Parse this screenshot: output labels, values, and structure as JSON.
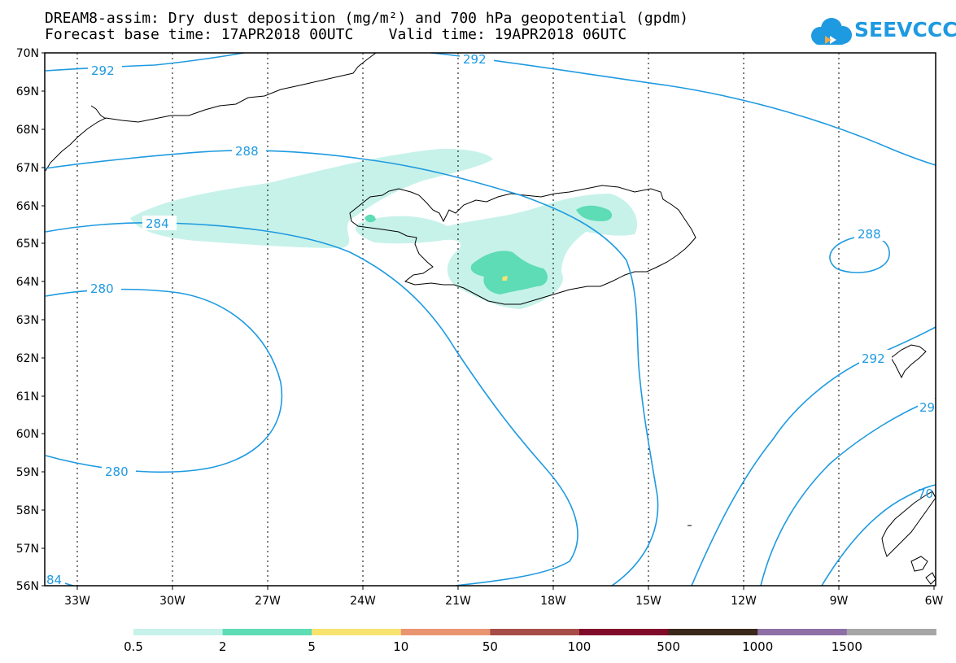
{
  "title": {
    "line1": "DREAM8-assim: Dry dust deposition (mg/m²) and 700 hPa geopotential (gpdm)",
    "line2": "Forecast base time: 17APR2018 00UTC    Valid time: 19APR2018 06UTC"
  },
  "logo": {
    "text": "SEEVCCC",
    "icon": "cloud-icon"
  },
  "map": {
    "lat_labels": [
      "70N",
      "69N",
      "68N",
      "67N",
      "66N",
      "65N",
      "64N",
      "63N",
      "62N",
      "61N",
      "60N",
      "59N",
      "58N",
      "57N",
      "56N"
    ],
    "lon_labels": [
      "33W",
      "30W",
      "27W",
      "24W",
      "21W",
      "18W",
      "15W",
      "12W",
      "9W",
      "6W"
    ],
    "contour_color": "#1e9ae0",
    "contour_labels": [
      "292",
      "292",
      "288",
      "284",
      "280",
      "280",
      "288",
      "292",
      "29",
      "70",
      "84"
    ]
  },
  "legend": {
    "colors": [
      "#c7f2ea",
      "#5ddcb6",
      "#f7e36e",
      "#e99572",
      "#a64d48",
      "#7f0a2a",
      "#3a291b",
      "#8e6fa6",
      "#a6a6a6"
    ],
    "labels": [
      "0.5",
      "2",
      "5",
      "10",
      "50",
      "100",
      "500",
      "1000",
      "1500"
    ]
  },
  "chart_data": {
    "type": "map",
    "lat_range": [
      56,
      70
    ],
    "lon_range": [
      -34.5,
      -6
    ],
    "geopotential_contours_gpdm": [
      280,
      284,
      288,
      292
    ],
    "dust_deposition_levels_mg_m2": [
      0.5,
      2,
      5,
      10,
      50,
      100,
      500,
      1000,
      1500
    ]
  }
}
